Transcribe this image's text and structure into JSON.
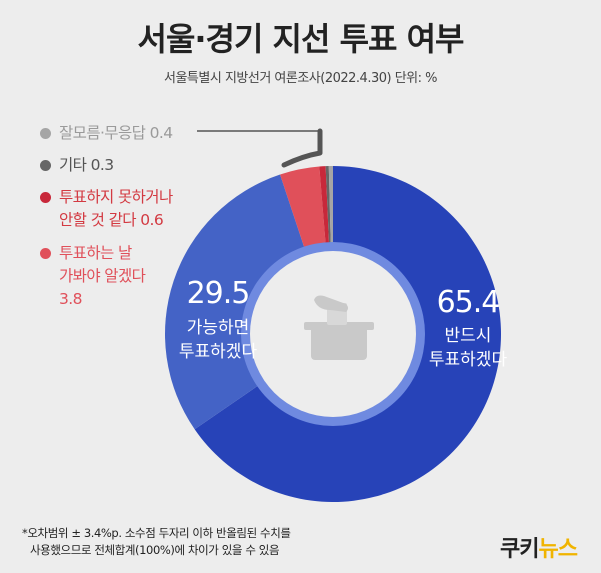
{
  "title": "서울·경기 지선 투표 여부",
  "subtitle": "서울특별시 지방선거 여론조사(2022.4.30)  단위: %",
  "legend": {
    "item1_label": "잘모름·무응답",
    "item1_value": "0.4",
    "item2_label": "기타",
    "item2_value": "0.3",
    "item3_label_line1": "투표하지 못하거나",
    "item3_label_line2": "안할 것 같다",
    "item3_value": "0.6",
    "item4_label_line1": "투표하는 날",
    "item4_label_line2": "가봐야 알겠다",
    "item4_value": "3.8"
  },
  "labels": {
    "big_value": "65.4",
    "big_line1": "반드시",
    "big_line2": "투표하겠다",
    "mid_value": "29.5",
    "mid_line1": "가능하면",
    "mid_line2": "투표하겠다"
  },
  "footnote": {
    "line1": "*오차범위 ± 3.4%p. 소수점 두자리 이하 반올림된 수치를",
    "line2": "사용했으므로 전체합계(100%)에 차이가 있을 수 있음"
  },
  "logo": {
    "part1": "쿠키",
    "part2": "뉴스"
  },
  "colors": {
    "definitely": "#2743b8",
    "possibly": "#4463c6",
    "wait_and_see": "#e0505a",
    "not_vote": "#c8283a",
    "other": "#666666",
    "unknown": "#a5a5a5",
    "inner_ring": "#6f8ae0",
    "center": "#ededed"
  },
  "chart_data": {
    "type": "pie",
    "title": "서울·경기 지선 투표 여부",
    "subtitle": "서울특별시 지방선거 여론조사(2022.4.30)",
    "unit": "%",
    "categories": [
      "반드시 투표하겠다",
      "가능하면 투표하겠다",
      "투표하는 날 가봐야 알겠다",
      "투표하지 못하거나 안할 것 같다",
      "기타",
      "잘모름·무응답"
    ],
    "values": [
      65.4,
      29.5,
      3.8,
      0.6,
      0.3,
      0.4
    ],
    "legend_position": "top-left"
  }
}
